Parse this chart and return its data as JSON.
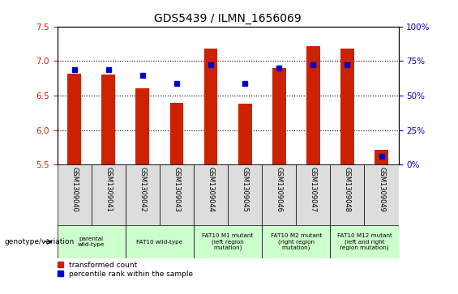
{
  "title": "GDS5439 / ILMN_1656069",
  "samples": [
    "GSM1309040",
    "GSM1309041",
    "GSM1309042",
    "GSM1309043",
    "GSM1309044",
    "GSM1309045",
    "GSM1309046",
    "GSM1309047",
    "GSM1309048",
    "GSM1309049"
  ],
  "bar_values": [
    6.82,
    6.8,
    6.6,
    6.4,
    7.18,
    6.38,
    6.9,
    7.22,
    7.18,
    5.72
  ],
  "dot_values": [
    6.88,
    6.88,
    6.79,
    6.67,
    6.94,
    6.67,
    6.9,
    6.94,
    6.94,
    5.62
  ],
  "bar_color": "#CC2200",
  "dot_color": "#0000CC",
  "ylim_left": [
    5.5,
    7.5
  ],
  "ylim_right": [
    0,
    100
  ],
  "yticks_left": [
    5.5,
    6.0,
    6.5,
    7.0,
    7.5
  ],
  "yticks_right": [
    0,
    25,
    50,
    75,
    100
  ],
  "grid_ticks": [
    6.0,
    6.5,
    7.0,
    7.5
  ],
  "genotype_groups": [
    {
      "label": "parental\nwild-type",
      "start": 0,
      "end": 2,
      "color": "#CCFFCC"
    },
    {
      "label": "FAT10 wild-type",
      "start": 2,
      "end": 4,
      "color": "#CCFFCC"
    },
    {
      "label": "FAT10 M1 mutant\n(left region\nmutation)",
      "start": 4,
      "end": 6,
      "color": "#CCFFCC"
    },
    {
      "label": "FAT10 M2 mutant\n(right region\nmutation)",
      "start": 6,
      "end": 8,
      "color": "#CCFFCC"
    },
    {
      "label": "FAT10 M12 mutant\n(left and right\nregion mutation)",
      "start": 8,
      "end": 10,
      "color": "#CCFFCC"
    }
  ],
  "legend_labels": [
    "transformed count",
    "percentile rank within the sample"
  ],
  "legend_colors": [
    "#CC2200",
    "#0000CC"
  ],
  "title_fontsize": 10,
  "axis_color_left": "#CC2200",
  "axis_color_right": "#0000CC",
  "sample_cell_color": "#DDDDDD",
  "bar_width": 0.4
}
